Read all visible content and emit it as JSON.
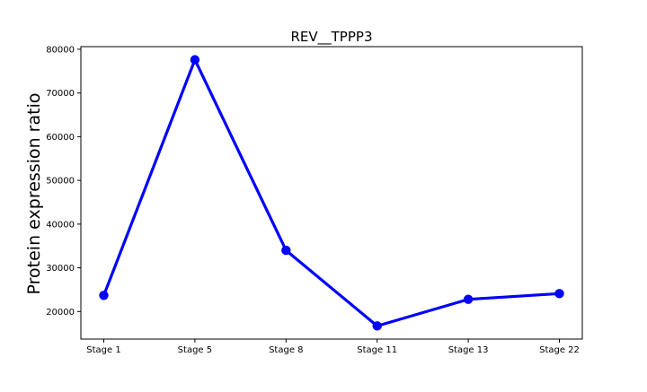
{
  "chart_data": {
    "type": "line",
    "title": "REV__TPPP3",
    "xlabel": "",
    "ylabel": "Protein expression ratio",
    "categories": [
      "Stage 1",
      "Stage 5",
      "Stage 8",
      "Stage 11",
      "Stage 13",
      "Stage 22"
    ],
    "series": [
      {
        "values": [
          23700,
          77600,
          34000,
          16700,
          22800,
          24100
        ],
        "color": "#0000ff"
      }
    ],
    "yticks": [
      20000,
      30000,
      40000,
      50000,
      60000,
      70000,
      80000
    ],
    "ytick_labels": [
      "20000",
      "30000",
      "40000",
      "50000",
      "60000",
      "70000",
      "80000"
    ],
    "ylim": [
      13700,
      80600
    ],
    "grid": false,
    "legend": "none",
    "marker": "circle"
  }
}
